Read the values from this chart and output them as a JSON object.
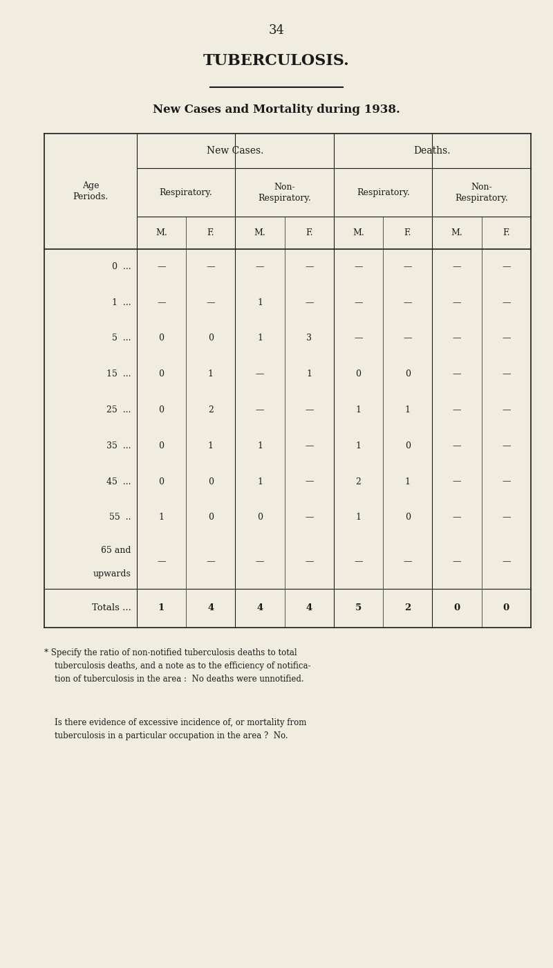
{
  "page_number": "34",
  "title": "TUBERCULOSIS.",
  "subtitle": "New Cases and Mortality during 1938.",
  "background_color": "#f0ece0",
  "text_color": "#1a1a1a",
  "row_labels": [
    "0  ...",
    "1  ...",
    "5  ...",
    "15  ...",
    "25  ...",
    "35  ...",
    "45  ...",
    "55  ..",
    "65 and\nupwards",
    "Totals ..."
  ],
  "table_data": [
    [
      "—",
      "—",
      "—",
      "—",
      "—",
      "—",
      "—",
      "—"
    ],
    [
      "—",
      "—",
      "1",
      "—",
      "—",
      "—",
      "—",
      "—"
    ],
    [
      "0",
      "0",
      "1",
      "3",
      "—",
      "—",
      "—",
      "—"
    ],
    [
      "0",
      "1",
      "—",
      "1",
      "0",
      "0",
      "—",
      "—"
    ],
    [
      "0",
      "2",
      "—",
      "—",
      "1",
      "1",
      "—",
      "—"
    ],
    [
      "0",
      "1",
      "1",
      "—",
      "1",
      "0",
      "—",
      "—"
    ],
    [
      "0",
      "0",
      "1",
      "—",
      "2",
      "1",
      "—",
      "—"
    ],
    [
      "1",
      "0",
      "0",
      "—",
      "1",
      "0",
      "—",
      "—"
    ],
    [
      "—",
      "—",
      "—",
      "—",
      "—",
      "—",
      "—",
      "—"
    ],
    [
      "1",
      "4",
      "4",
      "4",
      "5",
      "2",
      "0",
      "0"
    ]
  ],
  "footnote_star": "* Specify the ratio of non-notified tuberculosis deaths to total\n    tuberculosis deaths, and a note as to the efficiency of notifica-\n    tion of tuberculosis in the area :  No deaths were unnotified.",
  "footnote_2": "    Is there evidence of excessive incidence of, or mortality from\n    tuberculosis in a particular occupation in the area ?  No."
}
